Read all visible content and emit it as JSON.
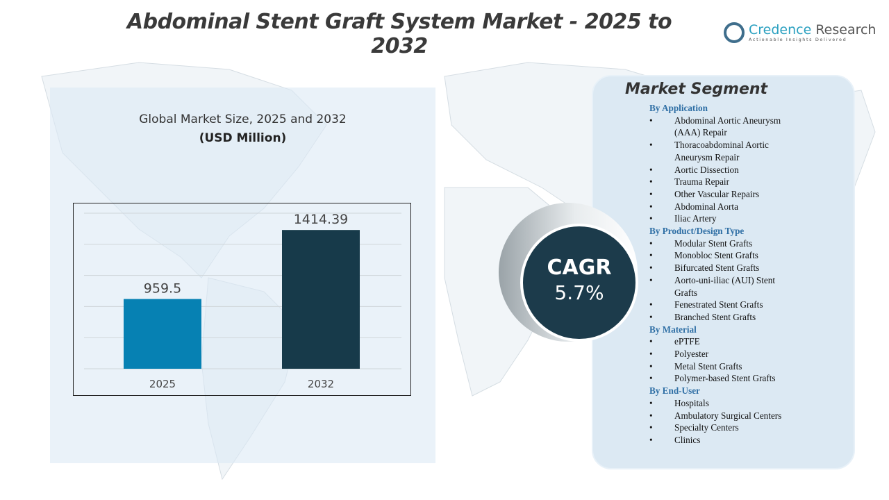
{
  "title": "Abdominal Stent Graft System Market - 2025 to 2032",
  "logo": {
    "name_a": "Credence",
    "name_b": " Research",
    "tagline": "Actionable Insights Delivered"
  },
  "subtitle": "Global Market Size, 2025 and 2032",
  "unit": "(USD Million)",
  "chart_data": {
    "type": "bar",
    "categories": [
      "2025",
      "2032"
    ],
    "values": [
      959.5,
      1414.39
    ],
    "data_labels": [
      "959.5",
      "1414.39"
    ],
    "ylim": [
      500,
      1525
    ],
    "grid": true,
    "colors": [
      "#0681b3",
      "#173a4a"
    ],
    "title": "Global Market Size, 2025 and 2032",
    "ylabel": "(USD Million)"
  },
  "cagr": {
    "label": "CAGR",
    "value": "5.7%"
  },
  "segments": {
    "title": "Market Segment",
    "groups": [
      {
        "name": "By Application",
        "items": [
          "Abdominal Aortic Aneurysm (AAA) Repair",
          "Thoracoabdominal Aortic Aneurysm Repair",
          "Aortic Dissection",
          "Trauma Repair",
          "Other Vascular Repairs",
          "Abdominal Aorta",
          "Iliac Artery"
        ]
      },
      {
        "name": "By Product/Design Type",
        "items": [
          "Modular Stent Grafts",
          "Monobloc Stent Grafts",
          "Bifurcated Stent Grafts",
          "Aorto-uni-iliac (AUI) Stent Grafts",
          "Fenestrated Stent Grafts",
          "Branched Stent Grafts"
        ]
      },
      {
        "name": "By Material",
        "items": [
          "ePTFE",
          "Polyester",
          "Metal Stent Grafts",
          "Polymer-based Stent Grafts"
        ]
      },
      {
        "name": "By End-User",
        "items": [
          "Hospitals",
          "Ambulatory Surgical Centers",
          "Specialty Centers",
          "Clinics"
        ]
      }
    ]
  }
}
